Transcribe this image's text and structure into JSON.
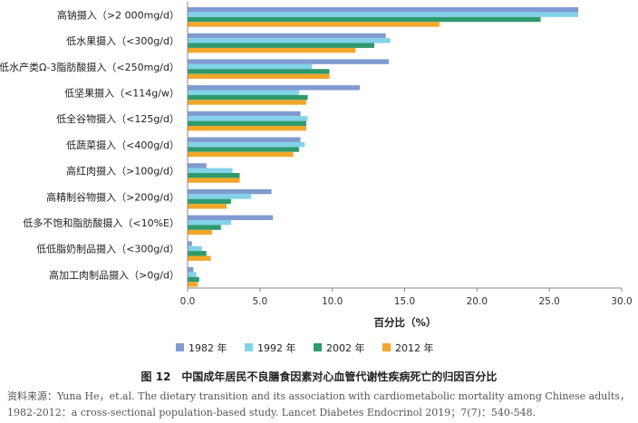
{
  "chart_data": {
    "type": "bar",
    "orientation": "horizontal",
    "categories": [
      "高钠摄入（>2 000mg/d）",
      "低水果摄入（<300g/d）",
      "低水产类Ω-3脂肪酸摄入（<250mg/d）",
      "低坚果摄入（<114g/w）",
      "低全谷物摄入（<125g/d）",
      "低蔬菜摄入（<400g/d）",
      "高红肉摄入（>100g/d）",
      "高精制谷物摄入（>200g/d）",
      "低多不饱和脂肪酸摄入（<10%E）",
      "低低脂奶制品摄入（<300g/d）",
      "高加工肉制品摄入（>0g/d）"
    ],
    "series": [
      {
        "name": "1982 年",
        "color": "#7f9bd0",
        "values": [
          27.0,
          13.7,
          13.9,
          11.9,
          7.8,
          7.8,
          1.3,
          5.8,
          5.9,
          0.3,
          0.4
        ]
      },
      {
        "name": "1992 年",
        "color": "#82d2ea",
        "values": [
          27.0,
          14.0,
          8.6,
          7.7,
          8.3,
          8.1,
          3.1,
          4.4,
          3.0,
          1.0,
          0.6
        ]
      },
      {
        "name": "2002 年",
        "color": "#2e9a6d",
        "values": [
          24.4,
          12.9,
          9.8,
          8.3,
          8.2,
          7.7,
          3.6,
          3.0,
          2.3,
          1.3,
          0.8
        ]
      },
      {
        "name": "2012 年",
        "color": "#f2a72a",
        "values": [
          17.4,
          11.6,
          9.8,
          8.2,
          8.2,
          7.3,
          3.6,
          2.7,
          1.7,
          1.6,
          0.7
        ]
      }
    ],
    "xlabel": "百分比（%）",
    "xlim": [
      0,
      30
    ],
    "xticks": [
      "0.0",
      "5.0",
      "10.0",
      "15.0",
      "20.0",
      "25.0",
      "30.0"
    ],
    "grid": false,
    "legend_position": "bottom"
  },
  "caption": "图 12　中国成年居民不良膳食因素对心血管代谢性疾病死亡的归因百分比",
  "source_line1": "资料来源：Yuna He，et.al. The dietary transition and its association with cardiometabolic mortality among Chinese adults，",
  "source_line2": "1982-2012：a cross-sectional population-based study. Lancet Diabetes Endocrinol 2019；7(7)：540-548."
}
